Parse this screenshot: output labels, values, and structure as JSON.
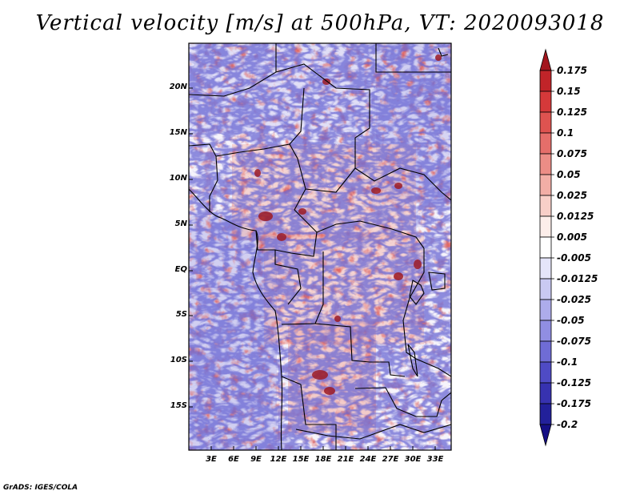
{
  "title": "Vertical velocity [m/s] at 500hPa, VT: 2020093018",
  "credit": "GrADS: IGES/COLA",
  "lat_labels": [
    "20N",
    "15N",
    "10N",
    "5N",
    "EQ",
    "5S",
    "10S",
    "15S"
  ],
  "lon_labels": [
    "3E",
    "6E",
    "9E",
    "12E",
    "15E",
    "18E",
    "21E",
    "24E",
    "27E",
    "30E",
    "33E"
  ],
  "colorbar": {
    "levels": [
      "0.175",
      "0.15",
      "0.125",
      "0.1",
      "0.075",
      "0.05",
      "0.025",
      "0.0125",
      "0.005",
      "-0.005",
      "-0.0125",
      "-0.025",
      "-0.05",
      "-0.075",
      "-0.1",
      "-0.125",
      "-0.175",
      "-0.2"
    ],
    "colors": [
      "#a3161d",
      "#c12429",
      "#d5393a",
      "#de5350",
      "#e56e6a",
      "#ec8d86",
      "#f2aea6",
      "#f8cfc8",
      "#fdeeea",
      "#ffffff",
      "#e5e5fa",
      "#c9c9f2",
      "#adaceb",
      "#908ee2",
      "#6f6cd5",
      "#4f4bc5",
      "#3732b0",
      "#22209a",
      "#150f85"
    ]
  }
}
